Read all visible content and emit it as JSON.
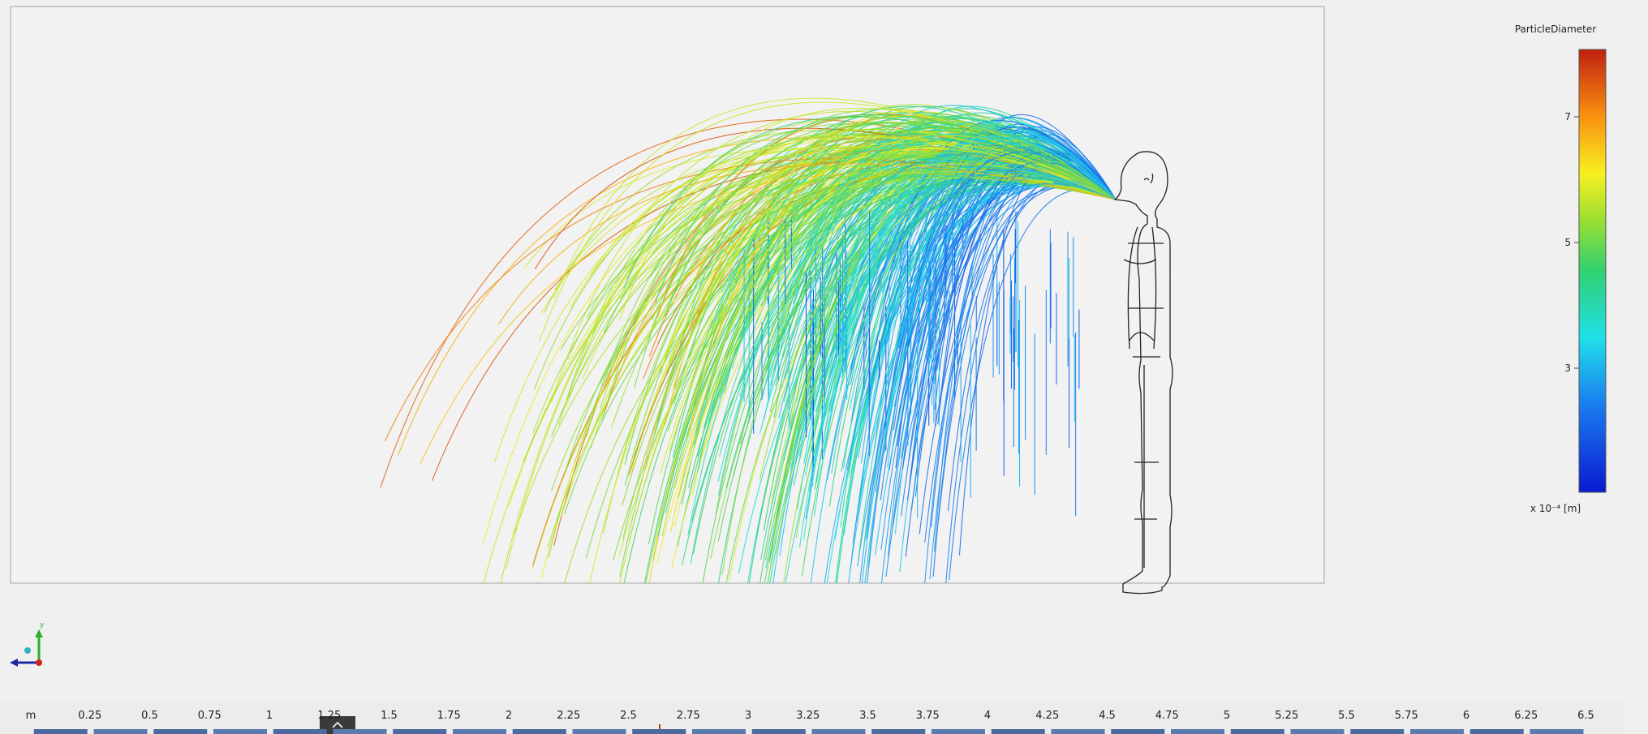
{
  "colorbar": {
    "title": "ParticleDiameter",
    "ticks": [
      7,
      5,
      3
    ],
    "unit": "x 10⁻⁴ [m]"
  },
  "triad": {
    "axis": "y"
  },
  "ruler": {
    "unit": "m",
    "labels": [
      0.25,
      0.5,
      0.75,
      1,
      1.25,
      1.5,
      1.75,
      2,
      2.25,
      2.5,
      2.75,
      3,
      3.25,
      3.5,
      3.75,
      4,
      4.25,
      4.5,
      4.75,
      5,
      5.25,
      5.5,
      5.75,
      6,
      6.25,
      6.5
    ]
  }
}
